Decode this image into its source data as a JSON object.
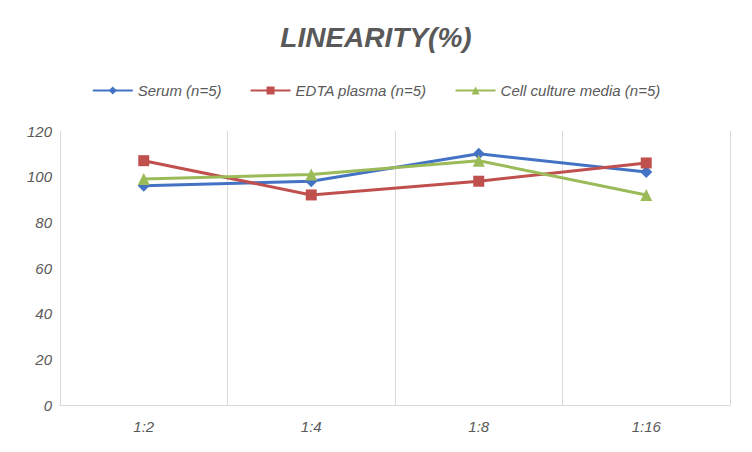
{
  "chart_data": {
    "type": "line",
    "title": "LINEARITY(%)",
    "categories": [
      "1:2",
      "1:4",
      "1:8",
      "1:16"
    ],
    "series": [
      {
        "name": "Serum (n=5)",
        "color": "#4472c4",
        "marker": "diamond",
        "values": [
          96,
          98,
          110,
          102
        ]
      },
      {
        "name": "EDTA plasma (n=5)",
        "color": "#c0504d",
        "marker": "square",
        "values": [
          107,
          92,
          98,
          106
        ]
      },
      {
        "name": "Cell culture media (n=5)",
        "color": "#9bbb59",
        "marker": "triangle",
        "values": [
          99,
          101,
          107,
          92
        ]
      }
    ],
    "ylim": [
      0,
      120
    ],
    "yticks": [
      0,
      20,
      40,
      60,
      80,
      100,
      120
    ],
    "grid": true,
    "legend": "top"
  }
}
